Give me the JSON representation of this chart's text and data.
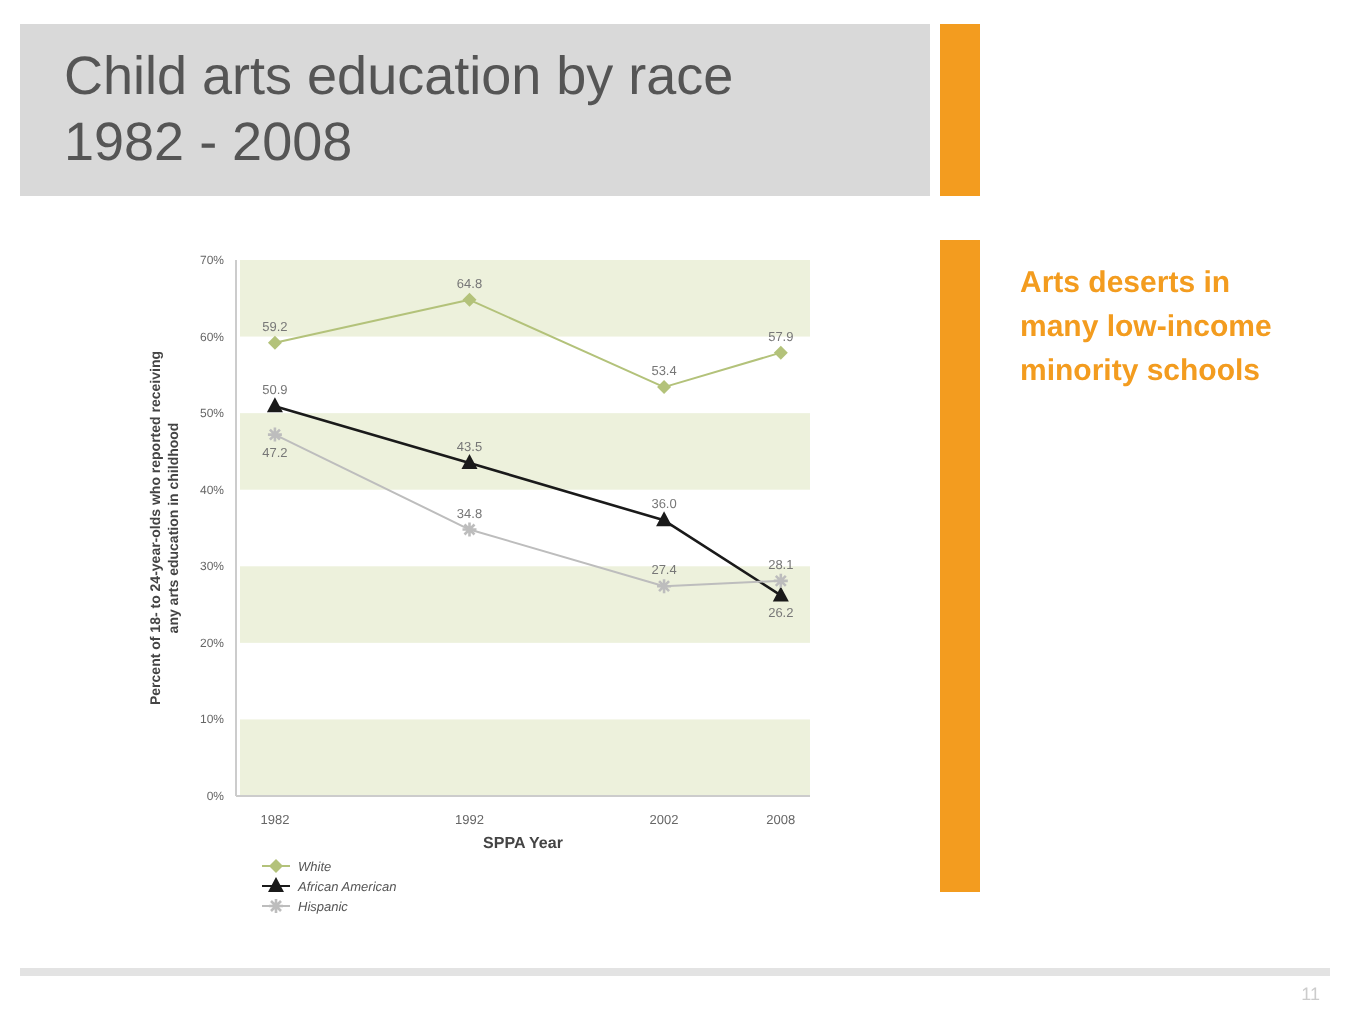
{
  "chart_data": {
    "type": "line",
    "title": "Child arts education by race 1982 - 2008",
    "xlabel": "SPPA Year",
    "ylabel": "Percent of 18- to 24-year-olds who reported receiving any arts education in childhood",
    "x": [
      1982,
      1992,
      2002,
      2008
    ],
    "xlim": [
      1980,
      2009.5
    ],
    "xticks": [
      1982,
      1992,
      2002,
      2008
    ],
    "ylim": [
      0,
      70
    ],
    "yticks": [
      {
        "value": 0,
        "label": "0%"
      },
      {
        "value": 10,
        "label": "10%"
      },
      {
        "value": 20,
        "label": "20%"
      },
      {
        "value": 30,
        "label": "30%"
      },
      {
        "value": 40,
        "label": "40%"
      },
      {
        "value": 50,
        "label": "50%"
      },
      {
        "value": 60,
        "label": "60%"
      },
      {
        "value": 70,
        "label": "70%"
      }
    ],
    "series": [
      {
        "name": "White",
        "color": "#b3c27a",
        "values": [
          59.2,
          64.8,
          53.4,
          57.9
        ],
        "value_labels": [
          "59.2",
          "64.8",
          "53.4",
          "57.9"
        ],
        "marker": "diamond"
      },
      {
        "name": "African American",
        "color": "#1a1a1a",
        "values": [
          50.9,
          43.5,
          36.0,
          26.2
        ],
        "value_labels": [
          "50.9",
          "43.5",
          "36.0",
          "26.2"
        ],
        "marker": "triangle"
      },
      {
        "name": "Hispanic",
        "color": "#bdbdbd",
        "values": [
          47.2,
          34.8,
          27.4,
          28.1
        ],
        "value_labels": [
          "47.2",
          "34.8",
          "27.4",
          "28.1"
        ],
        "marker": "cross"
      }
    ],
    "bands": [
      {
        "axis": "y",
        "from": 0,
        "to": 10,
        "color": "#edf1dc"
      },
      {
        "axis": "y",
        "from": 20,
        "to": 30,
        "color": "#edf1dc"
      },
      {
        "axis": "y",
        "from": 40,
        "to": 50,
        "color": "#edf1dc"
      },
      {
        "axis": "y",
        "from": 60,
        "to": 70,
        "color": "#edf1dc"
      }
    ],
    "legend": "bottom left",
    "grid": false,
    "annotations": [
      "Arts deserts in many low-income minority schools",
      "11"
    ]
  }
}
